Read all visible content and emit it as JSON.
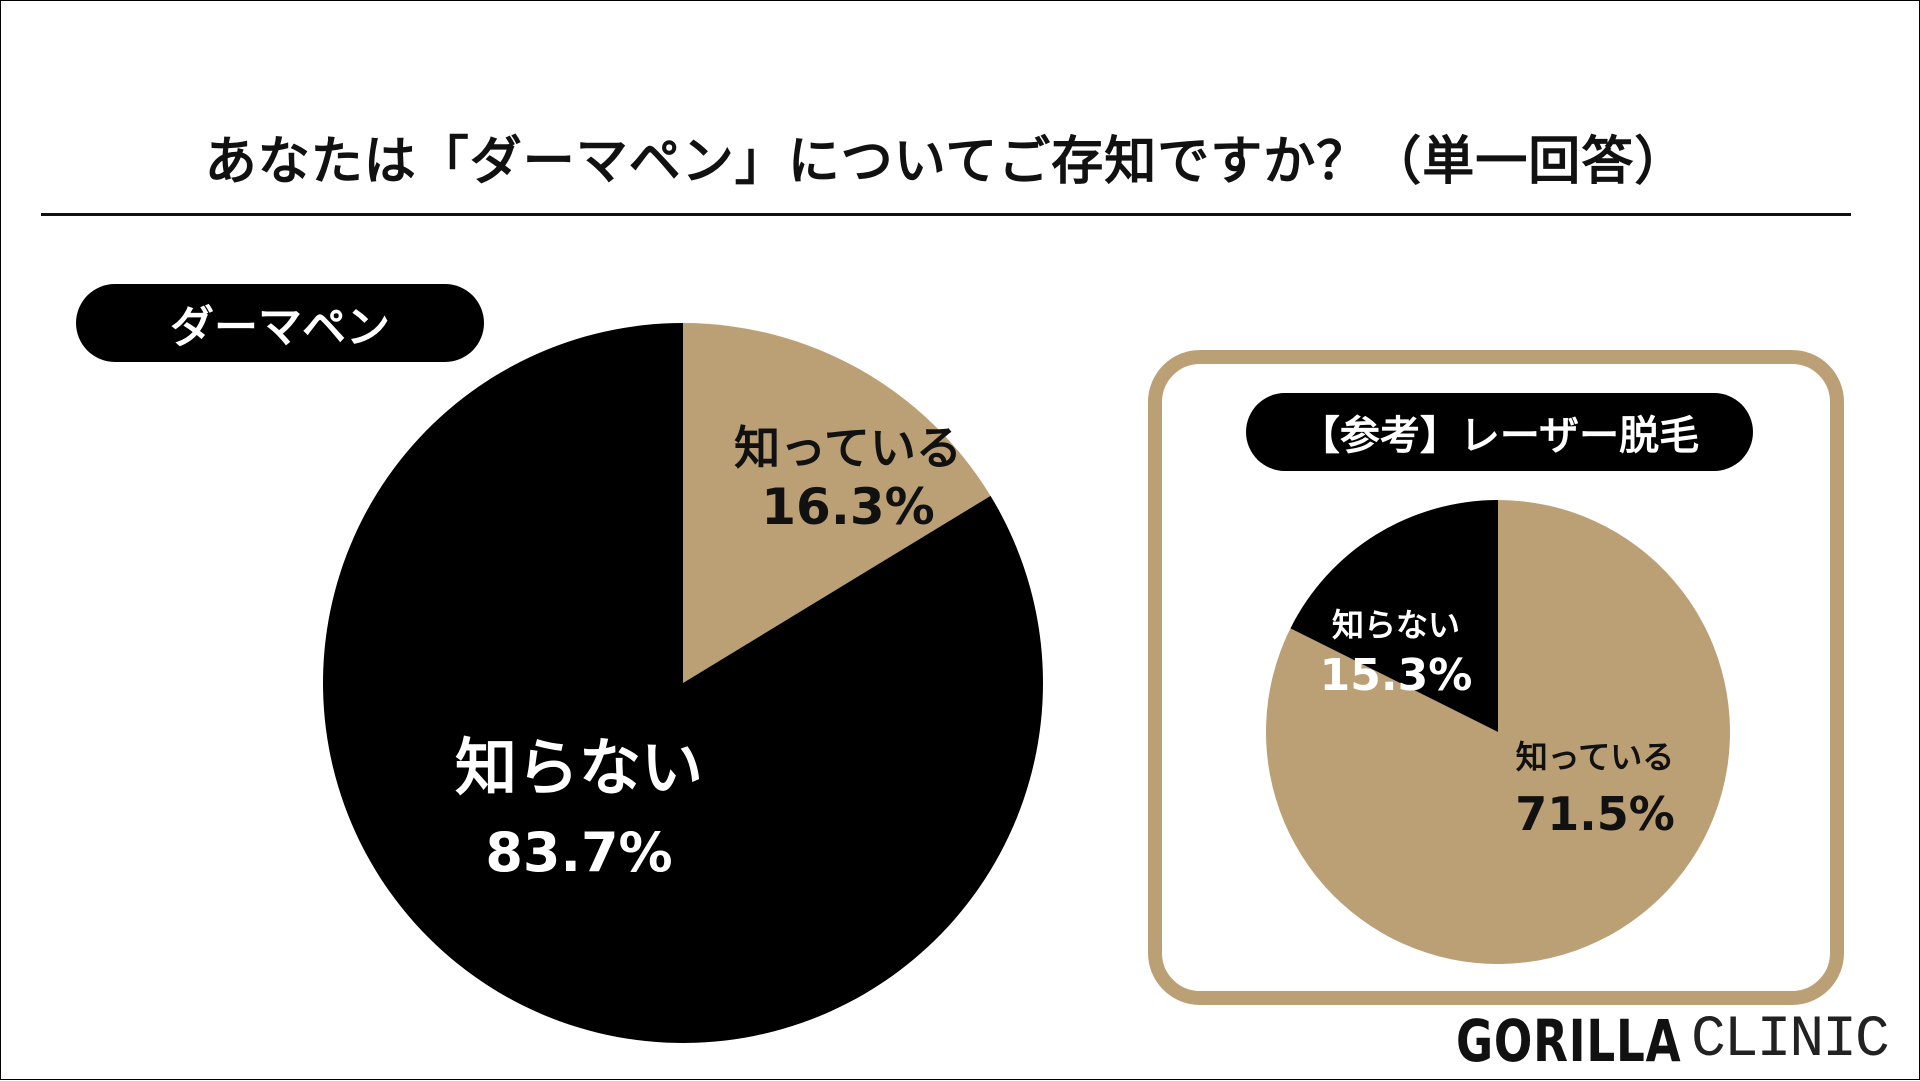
{
  "title": "あなたは「ダーマペン」についてご存知ですか？（単一回答）",
  "logo": {
    "bold": "GORILLA",
    "light": "CLINIC"
  },
  "colors": {
    "known": "#bba075",
    "unknown": "#000000"
  },
  "chart_data": [
    {
      "type": "pie",
      "title": "ダーマペン",
      "labels": [
        "知っている",
        "知らない"
      ],
      "values": [
        16.3,
        83.7
      ],
      "value_labels": [
        "16.3%",
        "83.7%"
      ],
      "colors": [
        "#bba075",
        "#000000"
      ]
    },
    {
      "type": "pie",
      "title": "【参考】レーザー脱毛",
      "labels": [
        "知っている",
        "知らない"
      ],
      "values": [
        71.5,
        15.3
      ],
      "value_labels": [
        "71.5%",
        "15.3%"
      ],
      "colors": [
        "#bba075",
        "#000000"
      ]
    }
  ]
}
